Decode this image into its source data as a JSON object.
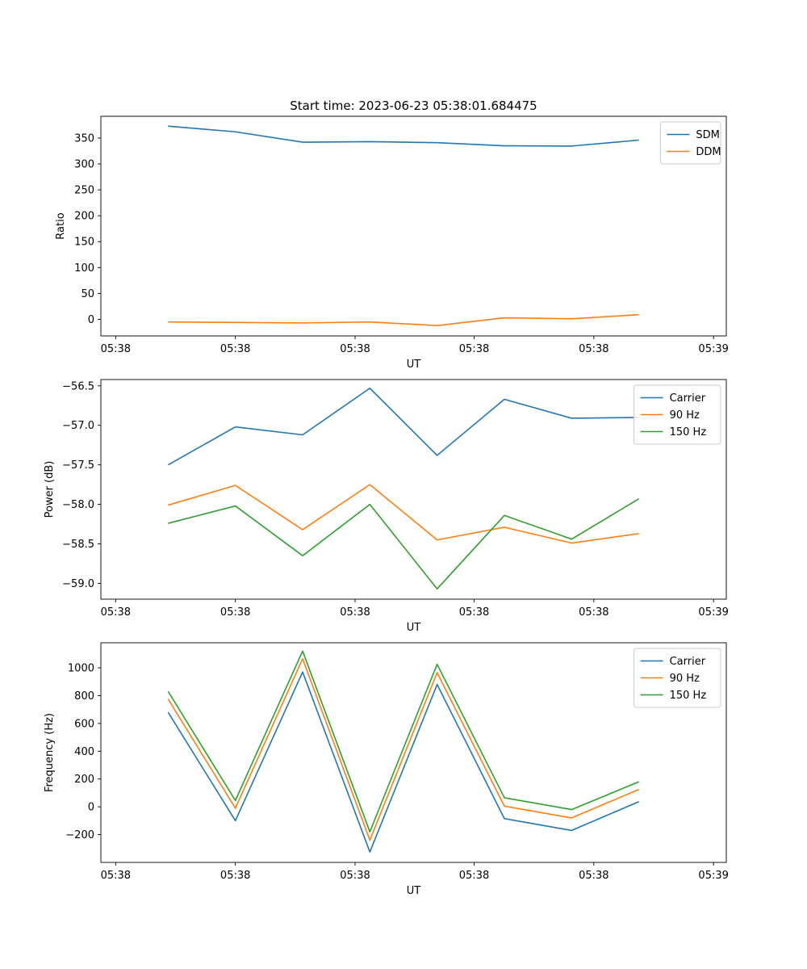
{
  "chart_data": [
    {
      "type": "line",
      "title": "Start time: 2023-06-23 05:38:01.684475",
      "xlabel": "UT",
      "ylabel": "Ratio",
      "xlim": [
        0,
        9.3
      ],
      "ylim": [
        -32,
        392
      ],
      "yticks": [
        0,
        50,
        100,
        150,
        200,
        250,
        300,
        350
      ],
      "xticks": [
        0.22,
        2.0,
        3.78,
        5.55,
        7.33,
        9.11
      ],
      "xtick_labels": [
        "05:38",
        "05:38",
        "05:38",
        "05:38",
        "05:38",
        "05:39"
      ],
      "grid": false,
      "legend": "top-right",
      "x": [
        1,
        2,
        3,
        4,
        5,
        6,
        7,
        8
      ],
      "series": [
        {
          "name": "SDM",
          "color": "#1f77b4",
          "values": [
            373,
            362,
            342,
            343,
            341,
            335,
            334.5,
            346
          ]
        },
        {
          "name": "DDM",
          "color": "#ff7f0e",
          "values": [
            -5,
            -6,
            -7,
            -5,
            -12,
            3,
            1,
            9
          ]
        }
      ]
    },
    {
      "type": "line",
      "xlabel": "UT",
      "ylabel": "Power (dB)",
      "xlim": [
        0,
        9.3
      ],
      "ylim": [
        -59.2,
        -56.42
      ],
      "yticks": [
        -59.0,
        -58.5,
        -58.0,
        -57.5,
        -57.0,
        -56.5
      ],
      "ytick_labels": [
        "−59.0",
        "−58.5",
        "−58.0",
        "−57.5",
        "−57.0",
        "−56.5"
      ],
      "xticks": [
        0.22,
        2.0,
        3.78,
        5.55,
        7.33,
        9.11
      ],
      "xtick_labels": [
        "05:38",
        "05:38",
        "05:38",
        "05:38",
        "05:38",
        "05:39"
      ],
      "grid": false,
      "legend": "top-right",
      "x": [
        1,
        2,
        3,
        4,
        5,
        6,
        7,
        8
      ],
      "series": [
        {
          "name": "Carrier",
          "color": "#1f77b4",
          "values": [
            -57.5,
            -57.02,
            -57.12,
            -56.53,
            -57.38,
            -56.67,
            -56.91,
            -56.9
          ]
        },
        {
          "name": "90 Hz",
          "color": "#ff7f0e",
          "values": [
            -58.01,
            -57.76,
            -58.32,
            -57.75,
            -58.45,
            -58.29,
            -58.49,
            -58.37
          ]
        },
        {
          "name": "150 Hz",
          "color": "#2ca02c",
          "values": [
            -58.24,
            -58.02,
            -58.65,
            -58.0,
            -59.07,
            -58.14,
            -58.44,
            -57.93
          ]
        }
      ]
    },
    {
      "type": "line",
      "xlabel": "UT",
      "ylabel": "Frequency (Hz)",
      "xlim": [
        0,
        9.3
      ],
      "ylim": [
        -400,
        1180
      ],
      "yticks": [
        -200,
        0,
        200,
        400,
        600,
        800,
        1000
      ],
      "ytick_labels": [
        "−200",
        "0",
        "200",
        "400",
        "600",
        "800",
        "1000"
      ],
      "xticks": [
        0.22,
        2.0,
        3.78,
        5.55,
        7.33,
        9.11
      ],
      "xtick_labels": [
        "05:38",
        "05:38",
        "05:38",
        "05:38",
        "05:38",
        "05:39"
      ],
      "grid": false,
      "legend": "top-right",
      "x": [
        1,
        2,
        3,
        4,
        5,
        6,
        7,
        8
      ],
      "series": [
        {
          "name": "Carrier",
          "color": "#1f77b4",
          "values": [
            680,
            -100,
            970,
            -325,
            880,
            -85,
            -170,
            37
          ]
        },
        {
          "name": "90 Hz",
          "color": "#ff7f0e",
          "values": [
            775,
            -10,
            1065,
            -240,
            965,
            5,
            -80,
            125
          ]
        },
        {
          "name": "150 Hz",
          "color": "#2ca02c",
          "values": [
            830,
            45,
            1120,
            -180,
            1025,
            65,
            -20,
            180
          ]
        }
      ]
    }
  ]
}
